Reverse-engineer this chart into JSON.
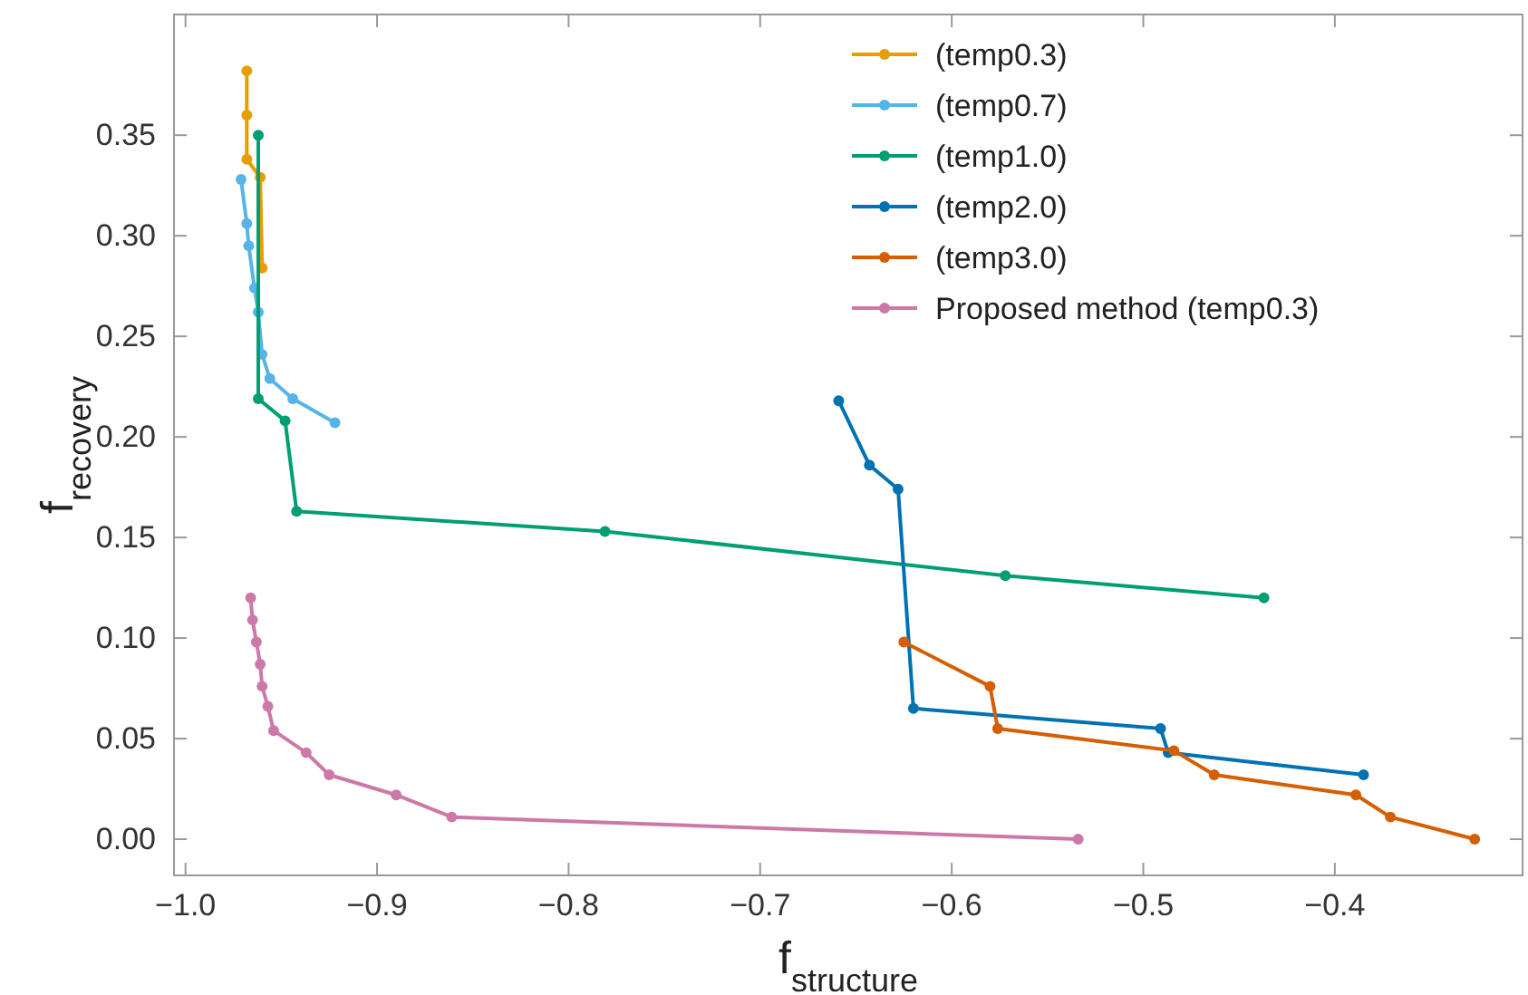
{
  "chart_data": {
    "type": "line",
    "xlabel": "f$_{structure}$",
    "ylabel": "f$_{recovery}$",
    "xlim": [
      -1.006,
      -0.302
    ],
    "xticks": [
      {
        "value": -1.0,
        "label": "−1.0"
      },
      {
        "value": -0.9,
        "label": "−0.9"
      },
      {
        "value": -0.8,
        "label": "−0.8"
      },
      {
        "value": -0.7,
        "label": "−0.7"
      },
      {
        "value": -0.6,
        "label": "−0.6"
      },
      {
        "value": -0.5,
        "label": "−0.5"
      },
      {
        "value": -0.4,
        "label": "−0.4"
      }
    ],
    "ylim": [
      -0.018,
      0.41
    ],
    "yticks": [
      {
        "value": 0,
        "label": "0.00"
      },
      {
        "value": 0.05,
        "label": "0.05"
      },
      {
        "value": 0.1,
        "label": "0.10"
      },
      {
        "value": 0.15,
        "label": "0.15"
      },
      {
        "value": 0.2,
        "label": "0.20"
      },
      {
        "value": 0.25,
        "label": "0.25"
      },
      {
        "value": 0.3,
        "label": "0.30"
      },
      {
        "value": 0.35,
        "label": "0.35"
      }
    ],
    "grid": false,
    "legend": "top right",
    "marker": "circle",
    "line_style": "solid",
    "series": [
      {
        "name": "(temp0.3)",
        "color": "#e69f00",
        "x": [
          -0.968,
          -0.968,
          -0.968,
          -0.961,
          -0.96
        ],
        "values": [
          0.382,
          0.36,
          0.338,
          0.329,
          0.284
        ]
      },
      {
        "name": "(temp0.7)",
        "color": "#56b4e9",
        "x": [
          -0.971,
          -0.968,
          -0.967,
          -0.964,
          -0.962,
          -0.96,
          -0.956,
          -0.944,
          -0.922
        ],
        "values": [
          0.328,
          0.306,
          0.295,
          0.274,
          0.262,
          0.241,
          0.229,
          0.219,
          0.207
        ]
      },
      {
        "name": "(temp1.0)",
        "color": "#009e73",
        "x": [
          -0.962,
          -0.962,
          -0.948,
          -0.942,
          -0.781,
          -0.572,
          -0.437
        ],
        "values": [
          0.35,
          0.219,
          0.208,
          0.163,
          0.153,
          0.131,
          0.12
        ]
      },
      {
        "name": "(temp2.0)",
        "color": "#0072b2",
        "x": [
          -0.659,
          -0.643,
          -0.628,
          -0.62,
          -0.491,
          -0.487,
          -0.385
        ],
        "values": [
          0.218,
          0.186,
          0.174,
          0.065,
          0.055,
          0.043,
          0.032
        ]
      },
      {
        "name": "(temp3.0)",
        "color": "#d55e00",
        "x": [
          -0.625,
          -0.58,
          -0.576,
          -0.484,
          -0.463,
          -0.389,
          -0.371,
          -0.327
        ],
        "values": [
          0.098,
          0.076,
          0.055,
          0.044,
          0.032,
          0.022,
          0.011,
          0.0
        ]
      },
      {
        "name": "Proposed method (temp0.3)",
        "color": "#cc79a7",
        "x": [
          -0.966,
          -0.965,
          -0.963,
          -0.961,
          -0.96,
          -0.957,
          -0.954,
          -0.937,
          -0.925,
          -0.89,
          -0.861,
          -0.534
        ],
        "values": [
          0.12,
          0.109,
          0.098,
          0.087,
          0.076,
          0.066,
          0.054,
          0.043,
          0.032,
          0.022,
          0.011,
          0.0
        ]
      }
    ]
  }
}
